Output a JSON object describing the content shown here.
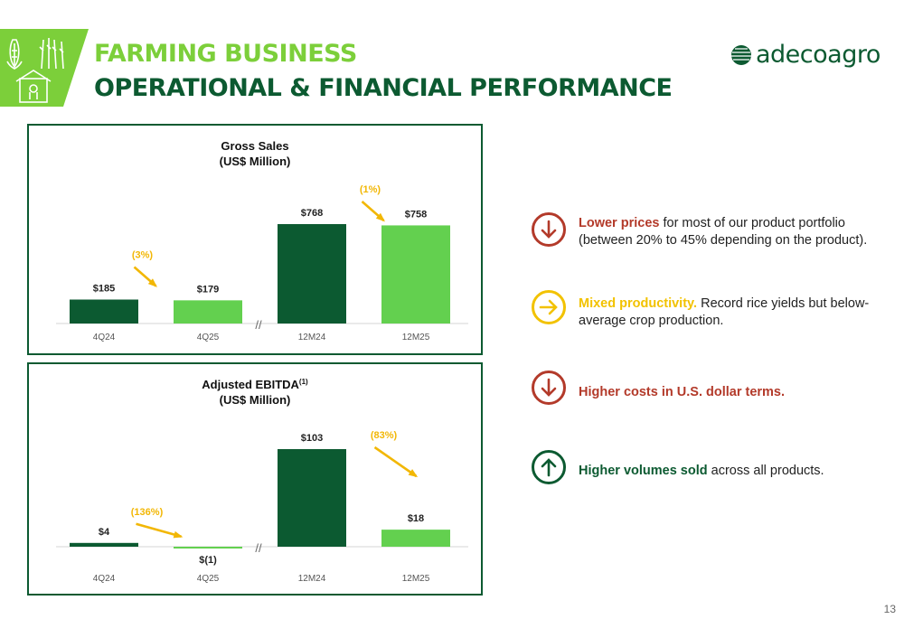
{
  "header": {
    "title_line1": "FARMING BUSINESS",
    "title_line2": "OPERATIONAL & FINANCIAL PERFORMANCE",
    "logo_text": "adecoagro",
    "colors": {
      "light_green": "#7ccf3a",
      "dark_green": "#0c5a31"
    },
    "icons": [
      "corn-icon",
      "wheat-icon",
      "barn-icon"
    ]
  },
  "chart_data": [
    {
      "type": "bar",
      "title": "Gross Sales",
      "subtitle": "(US$ Million)",
      "categories": [
        "4Q24",
        "4Q25",
        "12M24",
        "12M25"
      ],
      "values": [
        185,
        179,
        768,
        758
      ],
      "data_labels": [
        "$185",
        "$179",
        "$768",
        "$758"
      ],
      "bar_colors": [
        "#0c5a31",
        "#63d04f",
        "#0c5a31",
        "#63d04f"
      ],
      "changes": [
        {
          "label": "(3%)",
          "between": [
            "4Q24",
            "4Q25"
          ]
        },
        {
          "label": "(1%)",
          "between": [
            "12M24",
            "12M25"
          ]
        }
      ],
      "ylim": [
        0,
        768
      ],
      "axis_break": "//"
    },
    {
      "type": "bar",
      "title": "Adjusted EBITDA",
      "title_superscript": "(1)",
      "subtitle": "(US$ Million)",
      "categories": [
        "4Q24",
        "4Q25",
        "12M24",
        "12M25"
      ],
      "values": [
        4,
        -1,
        103,
        18
      ],
      "data_labels": [
        "$4",
        "$(1)",
        "$103",
        "$18"
      ],
      "bar_colors": [
        "#0c5a31",
        "#63d04f",
        "#0c5a31",
        "#63d04f"
      ],
      "changes": [
        {
          "label": "(136%)",
          "between": [
            "4Q24",
            "4Q25"
          ]
        },
        {
          "label": "(83%)",
          "between": [
            "12M24",
            "12M25"
          ]
        }
      ],
      "ylim": [
        -1,
        103
      ],
      "axis_break": "//"
    }
  ],
  "bullets": [
    {
      "icon": "arrow-down-icon",
      "color": "#b33a2a",
      "bold": "Lower prices",
      "rest": " for most of our product portfolio (between 20% to 45% depending on the product)."
    },
    {
      "icon": "arrow-right-icon",
      "color": "#f2c200",
      "bold": "Mixed productivity.",
      "rest": " Record rice yields but below-average crop production."
    },
    {
      "icon": "arrow-down-icon",
      "color": "#b33a2a",
      "bold": "Higher costs in U.S. dollar terms.",
      "rest": ""
    },
    {
      "icon": "arrow-up-icon",
      "color": "#0c5a31",
      "bold": "Higher volumes sold",
      "rest": " across all products."
    }
  ],
  "annotation_color": "#f2b705",
  "page_number": "13"
}
